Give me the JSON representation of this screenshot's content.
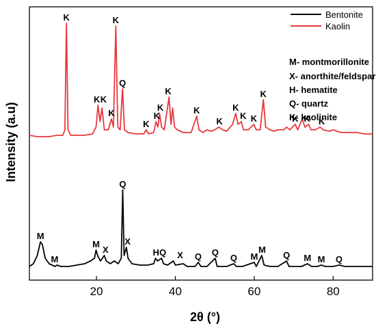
{
  "chart_data": {
    "type": "line",
    "xlabel": "2θ (°)",
    "ylabel": "Intensity (a.u)",
    "xlim": [
      3,
      90
    ],
    "ylim": [
      0,
      100
    ],
    "xticks": [
      "20",
      "40",
      "60",
      "80"
    ],
    "yticks": "none",
    "legend_position": "top-right",
    "series": [
      {
        "name": "Bentonite",
        "color": "#000000",
        "points": [
          [
            3,
            5
          ],
          [
            4,
            6
          ],
          [
            5,
            9
          ],
          [
            5.8,
            14
          ],
          [
            6.3,
            13
          ],
          [
            7,
            8
          ],
          [
            8,
            6
          ],
          [
            9.5,
            5
          ],
          [
            10,
            5.5
          ],
          [
            11,
            5
          ],
          [
            13,
            5
          ],
          [
            15,
            5.5
          ],
          [
            17,
            6
          ],
          [
            18.5,
            7
          ],
          [
            19.5,
            8
          ],
          [
            19.9,
            11
          ],
          [
            20.3,
            9
          ],
          [
            21,
            7
          ],
          [
            22,
            9
          ],
          [
            22.5,
            7
          ],
          [
            23.5,
            6
          ],
          [
            24.5,
            7
          ],
          [
            25.5,
            6
          ],
          [
            26.3,
            8
          ],
          [
            26.65,
            33
          ],
          [
            27,
            9
          ],
          [
            27.6,
            12
          ],
          [
            28,
            8
          ],
          [
            29,
            6
          ],
          [
            31,
            5.5
          ],
          [
            33,
            5.5
          ],
          [
            34.5,
            6
          ],
          [
            35,
            8
          ],
          [
            35.5,
            7
          ],
          [
            36.5,
            8
          ],
          [
            37,
            6
          ],
          [
            38,
            5.5
          ],
          [
            39.5,
            7
          ],
          [
            40,
            5.5
          ],
          [
            42,
            6
          ],
          [
            43,
            5
          ],
          [
            45,
            5
          ],
          [
            45.8,
            6.5
          ],
          [
            46.5,
            5
          ],
          [
            48,
            5
          ],
          [
            50.1,
            8
          ],
          [
            50.6,
            5
          ],
          [
            53,
            5
          ],
          [
            54.8,
            6
          ],
          [
            55.5,
            5
          ],
          [
            57,
            5
          ],
          [
            60,
            6.5
          ],
          [
            60.5,
            5
          ],
          [
            61.9,
            9
          ],
          [
            62.5,
            5.5
          ],
          [
            64,
            5
          ],
          [
            66,
            5
          ],
          [
            68.2,
            7
          ],
          [
            68.8,
            5
          ],
          [
            70,
            5
          ],
          [
            72,
            5
          ],
          [
            73.5,
            6
          ],
          [
            74.5,
            5
          ],
          [
            76,
            5
          ],
          [
            77,
            5.5
          ],
          [
            78,
            5
          ],
          [
            80,
            5
          ],
          [
            81.5,
            5.5
          ],
          [
            83,
            5
          ],
          [
            85,
            5
          ],
          [
            87,
            5
          ],
          [
            90,
            5
          ]
        ]
      },
      {
        "name": "Kaolin",
        "color": "#e8373b",
        "points": [
          [
            3,
            53
          ],
          [
            5,
            52.5
          ],
          [
            8,
            52.5
          ],
          [
            10,
            53
          ],
          [
            11.5,
            53
          ],
          [
            12,
            55
          ],
          [
            12.4,
            94
          ],
          [
            12.8,
            55
          ],
          [
            13.5,
            53
          ],
          [
            15,
            53
          ],
          [
            17,
            53
          ],
          [
            19,
            53.5
          ],
          [
            19.9,
            56
          ],
          [
            20.4,
            64
          ],
          [
            20.9,
            58
          ],
          [
            21.4,
            63
          ],
          [
            22,
            55
          ],
          [
            23,
            55
          ],
          [
            23.8,
            59
          ],
          [
            24.3,
            56
          ],
          [
            24.9,
            93
          ],
          [
            25.4,
            56
          ],
          [
            26,
            55
          ],
          [
            26.6,
            70
          ],
          [
            27.1,
            55
          ],
          [
            28,
            54
          ],
          [
            30,
            53.5
          ],
          [
            32,
            53.5
          ],
          [
            32.6,
            55
          ],
          [
            33.2,
            53.5
          ],
          [
            34.5,
            54
          ],
          [
            35.1,
            58
          ],
          [
            35.6,
            56
          ],
          [
            36,
            61
          ],
          [
            36.5,
            56
          ],
          [
            37.2,
            55
          ],
          [
            37.8,
            61
          ],
          [
            38.4,
            67
          ],
          [
            38.9,
            57
          ],
          [
            39.3,
            63
          ],
          [
            39.8,
            56
          ],
          [
            40.5,
            55
          ],
          [
            42,
            54
          ],
          [
            44,
            54
          ],
          [
            45.4,
            60
          ],
          [
            46,
            55
          ],
          [
            47,
            54
          ],
          [
            48,
            55
          ],
          [
            49,
            54.5
          ],
          [
            50,
            55
          ],
          [
            51,
            56
          ],
          [
            52,
            55
          ],
          [
            53,
            54.5
          ],
          [
            54.5,
            57
          ],
          [
            55.3,
            61
          ],
          [
            55.9,
            57
          ],
          [
            56.7,
            58
          ],
          [
            57.3,
            55
          ],
          [
            58.5,
            55
          ],
          [
            59.9,
            57
          ],
          [
            60.5,
            55
          ],
          [
            61.5,
            55
          ],
          [
            62.3,
            66
          ],
          [
            62.9,
            56
          ],
          [
            64,
            55
          ],
          [
            65,
            54.5
          ],
          [
            66,
            55
          ],
          [
            67.5,
            55
          ],
          [
            68.2,
            56
          ],
          [
            69,
            55
          ],
          [
            70.4,
            57
          ],
          [
            71,
            55
          ],
          [
            72.2,
            59
          ],
          [
            72.8,
            56
          ],
          [
            73.8,
            57
          ],
          [
            74.4,
            55
          ],
          [
            75.5,
            55
          ],
          [
            76.7,
            56
          ],
          [
            77.5,
            55
          ],
          [
            79,
            54.5
          ],
          [
            80,
            55
          ],
          [
            82,
            54
          ],
          [
            84,
            54
          ],
          [
            86,
            54
          ],
          [
            88,
            53.5
          ],
          [
            90,
            53.5
          ]
        ]
      }
    ],
    "peak_labels": [
      {
        "series": "Kaolin",
        "text": "K",
        "x": 12.4,
        "y": 94
      },
      {
        "series": "Kaolin",
        "text": "K",
        "x": 24.9,
        "y": 93
      },
      {
        "series": "Kaolin",
        "text": "K",
        "x": 20.1,
        "y": 64
      },
      {
        "series": "Kaolin",
        "text": "K",
        "x": 21.8,
        "y": 64
      },
      {
        "series": "Kaolin",
        "text": "K",
        "x": 23.8,
        "y": 59
      },
      {
        "series": "Kaolin",
        "text": "Q",
        "x": 26.6,
        "y": 70
      },
      {
        "series": "Kaolin",
        "text": "K",
        "x": 32.6,
        "y": 55
      },
      {
        "series": "Kaolin",
        "text": "K",
        "x": 35.3,
        "y": 58
      },
      {
        "series": "Kaolin",
        "text": "K",
        "x": 36.2,
        "y": 61
      },
      {
        "series": "Kaolin",
        "text": "K",
        "x": 38.2,
        "y": 67
      },
      {
        "series": "Kaolin",
        "text": "K",
        "x": 45.4,
        "y": 60
      },
      {
        "series": "Kaolin",
        "text": "K",
        "x": 51.2,
        "y": 56
      },
      {
        "series": "Kaolin",
        "text": "K",
        "x": 55.3,
        "y": 61
      },
      {
        "series": "Kaolin",
        "text": "K",
        "x": 57.2,
        "y": 58
      },
      {
        "series": "Kaolin",
        "text": "K",
        "x": 59.9,
        "y": 57
      },
      {
        "series": "Kaolin",
        "text": "K",
        "x": 62.3,
        "y": 66
      },
      {
        "series": "Kaolin",
        "text": "K",
        "x": 70.4,
        "y": 57
      },
      {
        "series": "Kaolin",
        "text": "K",
        "x": 73.4,
        "y": 57
      },
      {
        "series": "Kaolin",
        "text": "K",
        "x": 77.1,
        "y": 56
      },
      {
        "series": "Bentonite",
        "text": "Q",
        "x": 26.65,
        "y": 33
      },
      {
        "series": "Bentonite",
        "text": "M",
        "x": 5.8,
        "y": 14
      },
      {
        "series": "Bentonite",
        "text": "M",
        "x": 9.4,
        "y": 5.5
      },
      {
        "series": "Bentonite",
        "text": "M",
        "x": 19.9,
        "y": 11
      },
      {
        "series": "Bentonite",
        "text": "X",
        "x": 22.3,
        "y": 9
      },
      {
        "series": "Bentonite",
        "text": "X",
        "x": 27.9,
        "y": 12
      },
      {
        "series": "Bentonite",
        "text": "H",
        "x": 35.1,
        "y": 8
      },
      {
        "series": "Bentonite",
        "text": "Q",
        "x": 36.8,
        "y": 8
      },
      {
        "series": "Bentonite",
        "text": "X",
        "x": 41.2,
        "y": 7
      },
      {
        "series": "Bentonite",
        "text": "Q",
        "x": 45.8,
        "y": 6.5
      },
      {
        "series": "Bentonite",
        "text": "Q",
        "x": 50.1,
        "y": 8
      },
      {
        "series": "Bentonite",
        "text": "Q",
        "x": 54.8,
        "y": 6
      },
      {
        "series": "Bentonite",
        "text": "M",
        "x": 60.0,
        "y": 6.5
      },
      {
        "series": "Bentonite",
        "text": "M",
        "x": 62.0,
        "y": 9
      },
      {
        "series": "Bentonite",
        "text": "Q",
        "x": 68.2,
        "y": 7
      },
      {
        "series": "Bentonite",
        "text": "M",
        "x": 73.5,
        "y": 6
      },
      {
        "series": "Bentonite",
        "text": "M",
        "x": 77.0,
        "y": 5.5
      },
      {
        "series": "Bentonite",
        "text": "Q",
        "x": 81.5,
        "y": 5.5
      }
    ],
    "phase_key": [
      "M- montmorillonite",
      "X- anorthite/feldspar",
      "H- hematite",
      "Q- quartz",
      "K- kaolinite"
    ]
  }
}
